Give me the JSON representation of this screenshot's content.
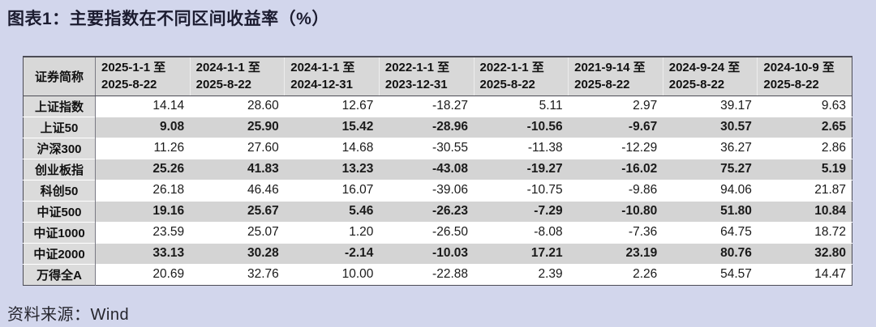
{
  "page": {
    "title": "图表1：主要指数在不同区间收益率（%）",
    "source": "资料来源：Wind"
  },
  "colors": {
    "page_bg": "#d2d6ec",
    "header_bg": "#d8d8d8",
    "label_col_bg": "#dbdbdb",
    "stripe_bg": "#d4d4d4",
    "row_bg": "#ffffff",
    "border_dark": "#4c4c56",
    "border_inner": "#7a7a84",
    "text_dark": "#1c1c30"
  },
  "chart_data": {
    "type": "table",
    "title": "图表1：主要指数在不同区间收益率（%）",
    "columns": [
      "证券简称",
      "2025-1-1 至 2025-8-22",
      "2024-1-1 至 2025-8-22",
      "2024-1-1 至 2024-12-31",
      "2022-1-1 至 2023-12-31",
      "2022-1-1 至 2025-8-22",
      "2021-9-14 至 2025-8-22",
      "2024-9-24 至 2025-8-22",
      "2024-10-9 至 2025-8-22"
    ],
    "rows": [
      [
        "上证指数",
        14.14,
        28.6,
        12.67,
        -18.27,
        5.11,
        2.97,
        39.17,
        9.63
      ],
      [
        "上证50",
        9.08,
        25.9,
        15.42,
        -28.96,
        -10.56,
        -9.67,
        30.57,
        2.65
      ],
      [
        "沪深300",
        11.26,
        27.6,
        14.68,
        -30.55,
        -11.38,
        -12.29,
        36.27,
        2.86
      ],
      [
        "创业板指",
        25.26,
        41.83,
        13.23,
        -43.08,
        -19.27,
        -16.02,
        75.27,
        5.19
      ],
      [
        "科创50",
        26.18,
        46.46,
        16.07,
        -39.06,
        -10.75,
        -9.86,
        94.06,
        21.87
      ],
      [
        "中证500",
        19.16,
        25.67,
        5.46,
        -26.23,
        -7.29,
        -10.8,
        51.8,
        10.84
      ],
      [
        "中证1000",
        23.59,
        25.07,
        1.2,
        -26.5,
        -8.08,
        -7.36,
        64.75,
        18.72
      ],
      [
        "中证2000",
        33.13,
        30.28,
        -2.14,
        -10.03,
        17.21,
        23.19,
        80.76,
        32.8
      ],
      [
        "万得全A",
        20.69,
        32.76,
        10.0,
        -22.88,
        2.39,
        2.26,
        54.57,
        14.47
      ]
    ],
    "source": "资料来源：Wind"
  },
  "table": {
    "name_column_header": "证券简称",
    "period_headers": [
      "2025-1-1 至\n2025-8-22",
      "2024-1-1 至\n2025-8-22",
      "2024-1-1 至\n2024-12-31",
      "2022-1-1 至\n2023-12-31",
      "2022-1-1 至\n2025-8-22",
      "2021-9-14 至\n2025-8-22",
      "2024-9-24 至\n2025-8-22",
      "2024-10-9 至\n2025-8-22"
    ],
    "rows": [
      {
        "label": "上证指数",
        "striped": false,
        "values": [
          "14.14",
          "28.60",
          "12.67",
          "-18.27",
          "5.11",
          "2.97",
          "39.17",
          "9.63"
        ]
      },
      {
        "label": "上证50",
        "striped": true,
        "values": [
          "9.08",
          "25.90",
          "15.42",
          "-28.96",
          "-10.56",
          "-9.67",
          "30.57",
          "2.65"
        ]
      },
      {
        "label": "沪深300",
        "striped": false,
        "values": [
          "11.26",
          "27.60",
          "14.68",
          "-30.55",
          "-11.38",
          "-12.29",
          "36.27",
          "2.86"
        ]
      },
      {
        "label": "创业板指",
        "striped": true,
        "values": [
          "25.26",
          "41.83",
          "13.23",
          "-43.08",
          "-19.27",
          "-16.02",
          "75.27",
          "5.19"
        ]
      },
      {
        "label": "科创50",
        "striped": false,
        "values": [
          "26.18",
          "46.46",
          "16.07",
          "-39.06",
          "-10.75",
          "-9.86",
          "94.06",
          "21.87"
        ]
      },
      {
        "label": "中证500",
        "striped": true,
        "values": [
          "19.16",
          "25.67",
          "5.46",
          "-26.23",
          "-7.29",
          "-10.80",
          "51.80",
          "10.84"
        ]
      },
      {
        "label": "中证1000",
        "striped": false,
        "values": [
          "23.59",
          "25.07",
          "1.20",
          "-26.50",
          "-8.08",
          "-7.36",
          "64.75",
          "18.72"
        ]
      },
      {
        "label": "中证2000",
        "striped": true,
        "values": [
          "33.13",
          "30.28",
          "-2.14",
          "-10.03",
          "17.21",
          "23.19",
          "80.76",
          "32.80"
        ]
      },
      {
        "label": "万得全A",
        "striped": false,
        "values": [
          "20.69",
          "32.76",
          "10.00",
          "-22.88",
          "2.39",
          "2.26",
          "54.57",
          "14.47"
        ]
      }
    ]
  }
}
